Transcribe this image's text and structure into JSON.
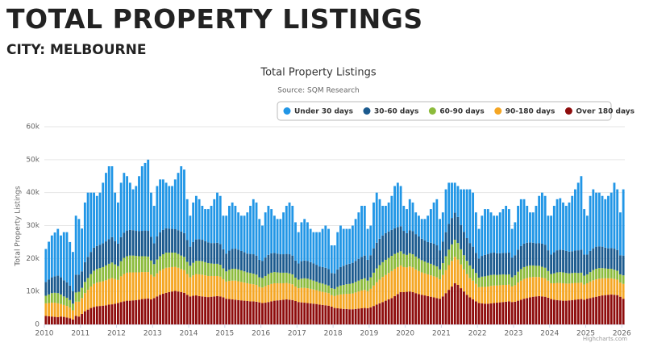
{
  "header": {
    "title": "TOTAL PROPERTY LISTINGS",
    "subtitle": "CITY: MELBOURNE"
  },
  "chart_data": {
    "type": "stacked-bar",
    "title": "Total Property Listings",
    "subtitle": "Source: SQM Research",
    "y_label": "Total Property Listings",
    "credit": "Highcharts.com",
    "ylim": [
      0,
      60000
    ],
    "yticks": [
      0,
      {
        "value": 10000,
        "label": "10k"
      },
      {
        "value": 20000,
        "label": "20k"
      },
      {
        "value": 30000,
        "label": "30k"
      },
      {
        "value": 40000,
        "label": "40k"
      },
      {
        "value": 50000,
        "label": "50k"
      },
      {
        "value": 60000,
        "label": "60k"
      }
    ],
    "grid": true,
    "legend": "top-right",
    "categories": [
      "2010",
      null,
      null,
      null,
      null,
      null,
      null,
      null,
      null,
      null,
      null,
      null,
      "2011",
      null,
      null,
      null,
      null,
      null,
      null,
      null,
      null,
      null,
      null,
      null,
      "2012",
      null,
      null,
      null,
      null,
      null,
      null,
      null,
      null,
      null,
      null,
      null,
      "2013",
      null,
      null,
      null,
      null,
      null,
      null,
      null,
      null,
      null,
      null,
      null,
      "2014",
      null,
      null,
      null,
      null,
      null,
      null,
      null,
      null,
      null,
      null,
      null,
      "2015",
      null,
      null,
      null,
      null,
      null,
      null,
      null,
      null,
      null,
      null,
      null,
      "2016",
      null,
      null,
      null,
      null,
      null,
      null,
      null,
      null,
      null,
      null,
      null,
      "2017",
      null,
      null,
      null,
      null,
      null,
      null,
      null,
      null,
      null,
      null,
      null,
      "2018",
      null,
      null,
      null,
      null,
      null,
      null,
      null,
      null,
      null,
      null,
      null,
      "2019",
      null,
      null,
      null,
      null,
      null,
      null,
      null,
      null,
      null,
      null,
      null,
      "2020",
      null,
      null,
      null,
      null,
      null,
      null,
      null,
      null,
      null,
      null,
      null,
      "2021",
      null,
      null,
      null,
      null,
      null,
      null,
      null,
      null,
      null,
      null,
      null,
      "2022",
      null,
      null,
      null,
      null,
      null,
      null,
      null,
      null,
      null,
      null,
      null,
      "2023",
      null,
      null,
      null,
      null,
      null,
      null,
      null,
      null,
      null,
      null,
      null,
      "2024",
      null,
      null,
      null,
      null,
      null,
      null,
      null,
      null,
      null,
      null,
      null,
      "2025",
      null,
      null,
      null,
      null,
      null,
      null,
      null,
      null,
      null,
      null,
      null,
      "2026"
    ],
    "series": [
      {
        "name": "Under 30 days",
        "color": "#2196e6",
        "values": [
          10000,
          11500,
          12700,
          13300,
          14200,
          12700,
          14600,
          15200,
          13200,
          11900,
          17900,
          16900,
          13000,
          18100,
          19500,
          18000,
          16700,
          15200,
          15800,
          18400,
          20800,
          22100,
          21500,
          14700,
          12500,
          16500,
          18200,
          16500,
          14300,
          12400,
          13600,
          16700,
          19600,
          20500,
          21600,
          13400,
          11400,
          15300,
          16000,
          15300,
          13800,
          12900,
          13000,
          15100,
          17400,
          19800,
          19300,
          12400,
          9400,
          12000,
          13200,
          12100,
          10300,
          9700,
          10100,
          11300,
          13300,
          15200,
          14600,
          10200,
          11500,
          13600,
          14100,
          13000,
          11300,
          10700,
          11100,
          12500,
          14600,
          16700,
          16100,
          12400,
          10700,
          13700,
          14900,
          13400,
          11300,
          10500,
          10700,
          12700,
          14600,
          15700,
          15100,
          11600,
          9500,
          11800,
          12600,
          11700,
          10100,
          9500,
          9900,
          10400,
          11600,
          12800,
          12200,
          8400,
          8500,
          11300,
          12600,
          11200,
          10800,
          10600,
          11300,
          12700,
          14100,
          15500,
          15100,
          9400,
          9000,
          13900,
          15200,
          12000,
          9000,
          8300,
          8800,
          10300,
          12800,
          13500,
          12200,
          7600,
          7300,
          9400,
          8700,
          6600,
          6300,
          6000,
          6500,
          8000,
          10200,
          12500,
          14000,
          9500,
          8900,
          13000,
          12500,
          10700,
          9100,
          9400,
          10800,
          12900,
          14800,
          16300,
          16400,
          12300,
          9000,
          12200,
          13900,
          13600,
          12300,
          11200,
          11400,
          12400,
          13300,
          14300,
          13200,
          8700,
          10000,
          13300,
          14200,
          13500,
          11200,
          9100,
          9200,
          11400,
          14300,
          15500,
          14800,
          10500,
          11800,
          14100,
          15500,
          15600,
          14400,
          13700,
          14900,
          16800,
          18600,
          20500,
          22300,
          13800,
          11800,
          16700,
          17900,
          16400,
          16300,
          15400,
          14700,
          15900,
          16800,
          20000,
          18400,
          13000,
          20100
        ]
      },
      {
        "name": "30-60 days",
        "color": "#1b5a8e",
        "values": [
          4200,
          4500,
          4800,
          5000,
          5300,
          5200,
          4900,
          4700,
          4400,
          3800,
          5400,
          5200,
          5000,
          6000,
          6400,
          6700,
          7000,
          7000,
          7100,
          7200,
          7300,
          7500,
          7700,
          7100,
          6800,
          7300,
          7600,
          7800,
          7800,
          7700,
          7600,
          7600,
          7700,
          7800,
          7800,
          7200,
          6300,
          7000,
          7300,
          7400,
          7400,
          7300,
          7200,
          7100,
          7200,
          7300,
          7200,
          6600,
          5800,
          6300,
          6500,
          6600,
          6500,
          6400,
          6300,
          6200,
          6300,
          6400,
          6300,
          5800,
          5400,
          5800,
          6000,
          6100,
          6000,
          5900,
          5800,
          5700,
          5800,
          5900,
          5800,
          5300,
          5200,
          5600,
          5800,
          5900,
          5800,
          5700,
          5600,
          5600,
          5700,
          5800,
          5700,
          5200,
          4900,
          5300,
          5400,
          5400,
          5300,
          5200,
          5100,
          5000,
          5000,
          5100,
          5000,
          4600,
          4700,
          5300,
          5600,
          5800,
          6000,
          6100,
          6200,
          6400,
          6600,
          6800,
          6900,
          6300,
          6700,
          7400,
          7800,
          8000,
          8100,
          8100,
          8000,
          7900,
          7800,
          7700,
          7600,
          7000,
          6600,
          7000,
          7000,
          6800,
          6700,
          6500,
          6400,
          6300,
          6400,
          6500,
          6400,
          5800,
          6500,
          7300,
          7800,
          8000,
          8200,
          7900,
          7400,
          7100,
          6900,
          6800,
          6700,
          6100,
          5800,
          6300,
          6500,
          6600,
          6700,
          6700,
          6600,
          6500,
          6500,
          6600,
          6600,
          6000,
          6100,
          6700,
          7000,
          7100,
          7100,
          7000,
          6900,
          6800,
          6900,
          7000,
          7000,
          6300,
          5900,
          6400,
          6700,
          6800,
          6800,
          6700,
          6600,
          6600,
          6700,
          6900,
          7000,
          6400,
          6000,
          6400,
          6600,
          6700,
          6600,
          6500,
          6300,
          6200,
          6300,
          6400,
          6300,
          5800,
          6000
        ]
      },
      {
        "name": "60-90 days",
        "color": "#8cbb3c",
        "values": [
          2300,
          2600,
          2900,
          3000,
          3100,
          2900,
          2600,
          2500,
          2300,
          2000,
          2800,
          3000,
          3100,
          3400,
          3600,
          3800,
          4000,
          4100,
          4200,
          4300,
          4500,
          4600,
          4700,
          4400,
          4200,
          4600,
          4900,
          5000,
          5100,
          5100,
          5000,
          4900,
          4800,
          4800,
          4700,
          4300,
          3800,
          4200,
          4400,
          4500,
          4600,
          4500,
          4400,
          4300,
          4200,
          4100,
          4000,
          3700,
          3500,
          3800,
          4000,
          4100,
          4100,
          4000,
          3900,
          3800,
          3700,
          3700,
          3600,
          3300,
          3100,
          3400,
          3600,
          3600,
          3600,
          3500,
          3400,
          3300,
          3300,
          3200,
          3100,
          2900,
          2900,
          3100,
          3300,
          3400,
          3400,
          3300,
          3200,
          3200,
          3100,
          3100,
          3000,
          2700,
          2600,
          2800,
          2900,
          2900,
          2800,
          2700,
          2600,
          2500,
          2500,
          2400,
          2300,
          2100,
          2200,
          2500,
          2700,
          2800,
          2900,
          3000,
          3100,
          3200,
          3300,
          3400,
          3500,
          3200,
          3500,
          3900,
          4200,
          4400,
          4500,
          4600,
          4600,
          4600,
          4500,
          4400,
          4300,
          4000,
          3800,
          4000,
          4000,
          3900,
          3800,
          3700,
          3600,
          3500,
          3500,
          3400,
          3300,
          3000,
          3600,
          4200,
          4700,
          5000,
          5200,
          5000,
          4600,
          4300,
          4000,
          3800,
          3600,
          3300,
          2900,
          3100,
          3200,
          3300,
          3300,
          3300,
          3200,
          3200,
          3200,
          3100,
          3100,
          2800,
          3000,
          3300,
          3500,
          3600,
          3600,
          3600,
          3500,
          3400,
          3400,
          3300,
          3200,
          2900,
          2800,
          3000,
          3200,
          3300,
          3300,
          3200,
          3100,
          3100,
          3100,
          3000,
          3000,
          2700,
          2700,
          2900,
          3100,
          3200,
          3200,
          3100,
          3000,
          2900,
          2900,
          2800,
          2700,
          2500,
          2600
        ]
      },
      {
        "name": "90-180 days",
        "color": "#f5a623",
        "values": [
          3800,
          4000,
          4200,
          4300,
          4200,
          3800,
          3600,
          3500,
          3200,
          2800,
          4300,
          4500,
          4800,
          5500,
          6000,
          6500,
          7000,
          7200,
          7300,
          7400,
          7600,
          7800,
          8000,
          7500,
          7000,
          7800,
          8300,
          8500,
          8600,
          8500,
          8400,
          8300,
          8200,
          8100,
          8000,
          7500,
          6500,
          7000,
          7300,
          7500,
          7600,
          7500,
          7400,
          7300,
          7200,
          7000,
          6900,
          6300,
          5800,
          6200,
          6500,
          6600,
          6600,
          6500,
          6400,
          6300,
          6200,
          6100,
          6000,
          5500,
          5200,
          5500,
          5700,
          5800,
          5700,
          5600,
          5500,
          5400,
          5300,
          5200,
          5100,
          4700,
          4700,
          5000,
          5200,
          5300,
          5300,
          5200,
          5100,
          5000,
          5000,
          4900,
          4800,
          4400,
          4200,
          4400,
          4500,
          4500,
          4400,
          4300,
          4200,
          4100,
          4000,
          3900,
          3800,
          3500,
          3600,
          4000,
          4300,
          4500,
          4600,
          4700,
          4800,
          5000,
          5200,
          5400,
          5500,
          5200,
          5600,
          6200,
          6800,
          7200,
          7600,
          7800,
          8000,
          8200,
          8300,
          8200,
          8100,
          7600,
          7400,
          7600,
          7500,
          7200,
          7000,
          6800,
          6700,
          6600,
          6500,
          6400,
          6300,
          5900,
          6500,
          7000,
          7500,
          7800,
          8000,
          7700,
          7200,
          6700,
          6300,
          5900,
          5700,
          5300,
          4800,
          5000,
          5100,
          5200,
          5300,
          5300,
          5200,
          5200,
          5200,
          5100,
          5100,
          4700,
          5000,
          5500,
          5800,
          6000,
          6100,
          6100,
          6000,
          5900,
          5800,
          5700,
          5600,
          5200,
          4800,
          5000,
          5200,
          5300,
          5300,
          5200,
          5100,
          5100,
          5100,
          5000,
          5000,
          4600,
          4700,
          5000,
          5200,
          5300,
          5300,
          5200,
          5100,
          5000,
          4900,
          4800,
          4700,
          4300,
          4500
        ]
      },
      {
        "name": "Over 180 days",
        "color": "#8e0c0c",
        "values": [
          2600,
          2500,
          2400,
          2300,
          2200,
          2400,
          2300,
          2100,
          1900,
          1500,
          2600,
          2400,
          3200,
          4000,
          4500,
          5000,
          5300,
          5500,
          5600,
          5700,
          5800,
          6000,
          6100,
          6300,
          6500,
          6800,
          7000,
          7200,
          7200,
          7300,
          7400,
          7500,
          7700,
          7800,
          7900,
          7600,
          8000,
          8500,
          9000,
          9300,
          9600,
          9800,
          10000,
          10200,
          10000,
          9800,
          9600,
          9000,
          8500,
          8700,
          8800,
          8600,
          8500,
          8400,
          8300,
          8400,
          8500,
          8600,
          8500,
          8200,
          7800,
          7700,
          7600,
          7500,
          7400,
          7300,
          7200,
          7100,
          7000,
          7000,
          6900,
          6700,
          6500,
          6600,
          6800,
          7000,
          7200,
          7300,
          7400,
          7500,
          7600,
          7500,
          7400,
          7100,
          6800,
          6700,
          6600,
          6500,
          6400,
          6300,
          6200,
          6000,
          5900,
          5800,
          5700,
          5400,
          5000,
          4900,
          4800,
          4700,
          4700,
          4600,
          4600,
          4700,
          4800,
          4900,
          5000,
          4900,
          5200,
          5600,
          6000,
          6400,
          6800,
          7200,
          7600,
          8000,
          8600,
          9200,
          9800,
          9800,
          9900,
          10000,
          9800,
          9500,
          9200,
          9000,
          8800,
          8600,
          8400,
          8200,
          8000,
          7800,
          8500,
          9500,
          10500,
          11500,
          12500,
          12000,
          11000,
          10000,
          9000,
          8200,
          7600,
          7000,
          6500,
          6400,
          6300,
          6300,
          6400,
          6500,
          6600,
          6700,
          6800,
          6900,
          7000,
          6800,
          6900,
          7200,
          7500,
          7800,
          8000,
          8200,
          8400,
          8500,
          8600,
          8500,
          8400,
          8100,
          7700,
          7500,
          7400,
          7300,
          7200,
          7200,
          7300,
          7400,
          7500,
          7600,
          7700,
          7500,
          7800,
          8000,
          8200,
          8400,
          8600,
          8800,
          8900,
          9000,
          9100,
          9000,
          8900,
          8400,
          7800
        ]
      }
    ]
  }
}
